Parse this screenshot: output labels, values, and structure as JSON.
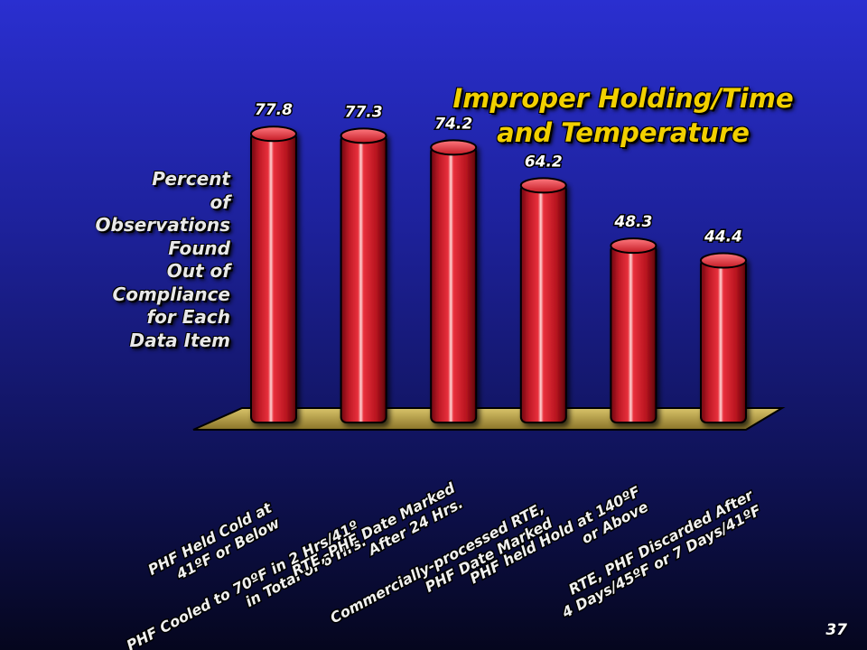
{
  "title_lines": [
    "Improper Holding/Time",
    "and Temperature"
  ],
  "ylabel_lines": [
    "Percent",
    "of",
    "Observations",
    "Found",
    "Out of",
    "Compliance",
    "for Each",
    "Data Item"
  ],
  "page_number": "37",
  "chart_data": {
    "type": "bar",
    "title": "Improper Holding/Time and Temperature",
    "ylabel": "Percent of Observations Found Out of Compliance for Each Data Item",
    "xlabel": "",
    "ylim": [
      0,
      100
    ],
    "grid": false,
    "categories": [
      [
        "PHF Held Cold at",
        "41ºF or Below"
      ],
      [
        "PHF Cooled to 70ºF in 2 Hrs/41º",
        "in Total of 6 Hrs."
      ],
      [
        "RTE, PHF Date Marked",
        "After 24 Hrs."
      ],
      [
        "Commercially-processed RTE,",
        "PHF Date Marked"
      ],
      [
        "PHF held Hold at 140ºF",
        "or Above"
      ],
      [
        "RTE, PHF Discarded After",
        "4 Days/45ºF or 7 Days/41ºF"
      ]
    ],
    "values": [
      77.8,
      77.3,
      74.2,
      64.2,
      48.3,
      44.4
    ],
    "data_labels": [
      "77.8",
      "77.3",
      "74.2",
      "64.2",
      "48.3",
      "44.4"
    ],
    "colors": {
      "bar": "#d6222e",
      "bar_dark": "#7a0610",
      "highlight": "#ffd0d0",
      "floor": "#c9b25a",
      "label": "#ffffff"
    }
  }
}
